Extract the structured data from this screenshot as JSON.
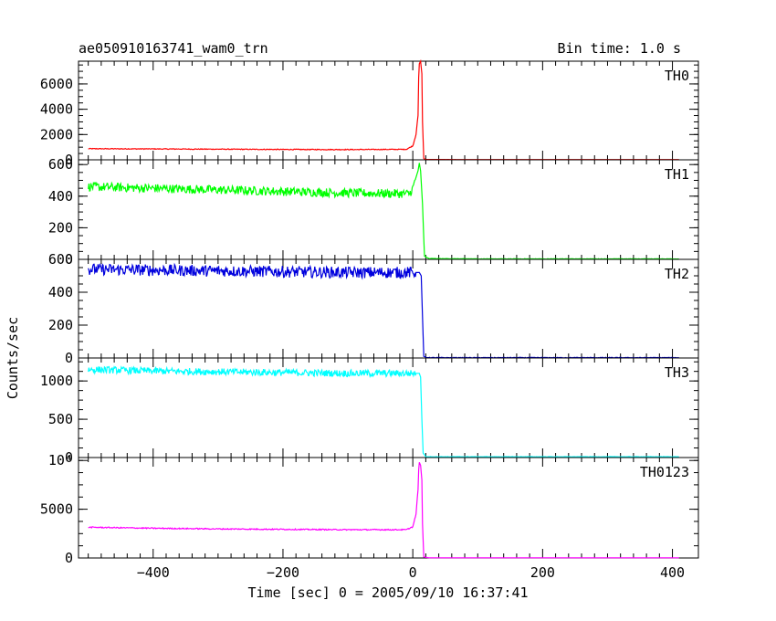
{
  "header": {
    "title": "ae050910163741_wam0_trn",
    "bin_time": "Bin time: 1.0 s"
  },
  "chart_data": {
    "type": "line",
    "title": "ae050910163741_wam0_trn",
    "xlabel": "Time [sec] 0 = 2005/09/10 16:37:41",
    "ylabel": "Counts/sec",
    "xlim": [
      -515,
      440
    ],
    "x_ticks": [
      -400,
      -200,
      0,
      200,
      400
    ],
    "x_tick_labels": [
      "−400",
      "−200",
      "0",
      "200",
      "400"
    ],
    "grid": false,
    "legend": "none",
    "panels": [
      {
        "name": "TH0",
        "color": "#ff0000",
        "ylim": [
          0,
          7800
        ],
        "ticks": [
          0,
          2000,
          4000,
          6000
        ],
        "tick_labels": [
          "0",
          "2000",
          "4000",
          "6000"
        ],
        "points": [
          [
            -500,
            880
          ],
          [
            -400,
            860
          ],
          [
            -300,
            840
          ],
          [
            -200,
            820
          ],
          [
            -100,
            810
          ],
          [
            -10,
            830
          ],
          [
            0,
            1100
          ],
          [
            5,
            2000
          ],
          [
            8,
            3500
          ],
          [
            9,
            6500
          ],
          [
            10,
            7600
          ],
          [
            12,
            7800
          ],
          [
            14,
            6800
          ],
          [
            15,
            3000
          ],
          [
            17,
            100
          ],
          [
            20,
            30
          ],
          [
            100,
            20
          ],
          [
            200,
            20
          ],
          [
            300,
            20
          ],
          [
            410,
            20
          ]
        ],
        "noise": 30
      },
      {
        "name": "TH1",
        "color": "#00ff00",
        "ylim": [
          0,
          630
        ],
        "ticks": [
          0,
          200,
          400,
          600
        ],
        "tick_labels": [
          "0",
          "200",
          "400",
          "600"
        ],
        "points": [
          [
            -500,
            460
          ],
          [
            -400,
            450
          ],
          [
            -300,
            440
          ],
          [
            -200,
            430
          ],
          [
            -100,
            420
          ],
          [
            -5,
            415
          ],
          [
            0,
            450
          ],
          [
            8,
            560
          ],
          [
            10,
            610
          ],
          [
            12,
            560
          ],
          [
            15,
            350
          ],
          [
            18,
            20
          ],
          [
            25,
            5
          ],
          [
            100,
            3
          ],
          [
            410,
            3
          ]
        ],
        "noise": 28
      },
      {
        "name": "TH2",
        "color": "#0000dd",
        "ylim": [
          0,
          600
        ],
        "ticks": [
          0,
          200,
          400,
          600
        ],
        "tick_labels": [
          "0",
          "200",
          "400",
          "600"
        ],
        "points": [
          [
            -500,
            540
          ],
          [
            -400,
            535
          ],
          [
            -300,
            530
          ],
          [
            -200,
            525
          ],
          [
            -100,
            520
          ],
          [
            10,
            520
          ],
          [
            13,
            500
          ],
          [
            15,
            250
          ],
          [
            17,
            10
          ],
          [
            22,
            2
          ],
          [
            410,
            2
          ]
        ],
        "noise": 35
      },
      {
        "name": "TH3",
        "color": "#00ffff",
        "ylim": [
          0,
          1300
        ],
        "ticks": [
          0,
          500,
          1000
        ],
        "tick_labels": [
          "0",
          "500",
          "1000"
        ],
        "points": [
          [
            -500,
            1150
          ],
          [
            -400,
            1130
          ],
          [
            -300,
            1120
          ],
          [
            -200,
            1110
          ],
          [
            -100,
            1100
          ],
          [
            10,
            1100
          ],
          [
            12,
            1050
          ],
          [
            14,
            500
          ],
          [
            16,
            60
          ],
          [
            20,
            10
          ],
          [
            410,
            10
          ]
        ],
        "noise": 45
      },
      {
        "name": "TH0123",
        "color": "#ff00ff",
        "ylim": [
          0,
          10300
        ],
        "ticks": [
          0,
          5000,
          10000
        ],
        "tick_labels": [
          "0",
          "5000",
          "10⁴"
        ],
        "points": [
          [
            -500,
            3150
          ],
          [
            -400,
            3050
          ],
          [
            -300,
            2980
          ],
          [
            -200,
            2940
          ],
          [
            -100,
            2900
          ],
          [
            -10,
            2900
          ],
          [
            0,
            3200
          ],
          [
            5,
            4500
          ],
          [
            8,
            7000
          ],
          [
            9,
            9000
          ],
          [
            10,
            9800
          ],
          [
            12,
            9500
          ],
          [
            14,
            8000
          ],
          [
            15,
            3500
          ],
          [
            17,
            100
          ],
          [
            25,
            20
          ],
          [
            410,
            20
          ]
        ],
        "noise": 55
      }
    ]
  }
}
